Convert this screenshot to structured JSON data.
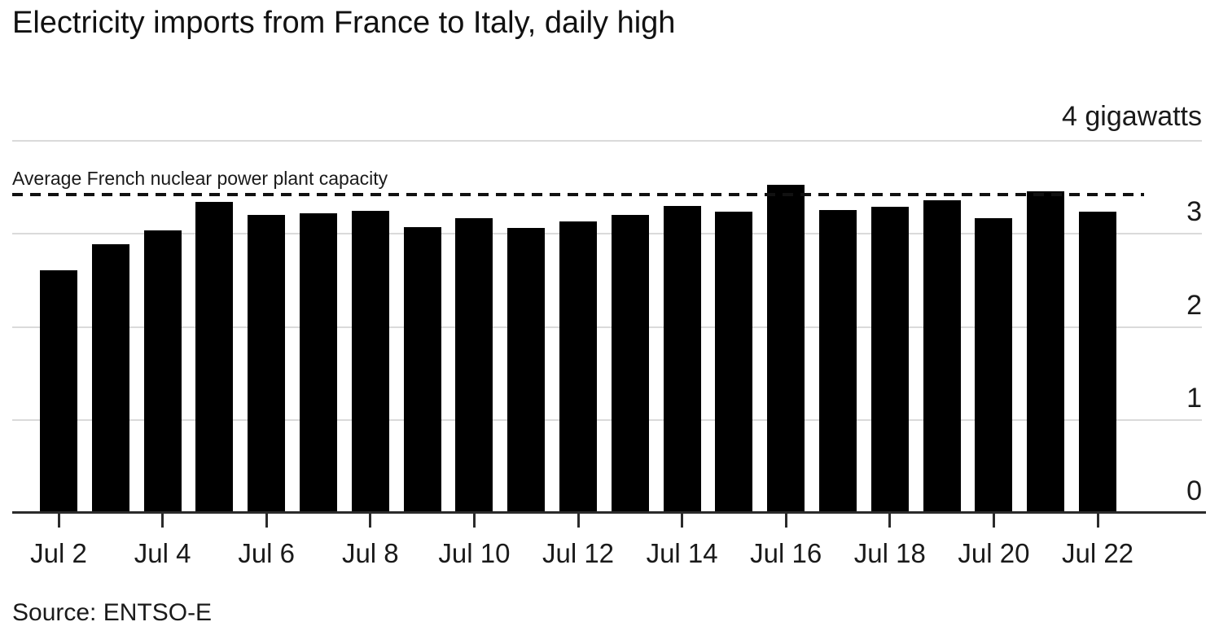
{
  "colors": {
    "background": "#ffffff",
    "bar": "#000000",
    "grid": "#dadada",
    "axis": "#2b2b2b",
    "text": "#1a1a1a",
    "reference_line": "#111111"
  },
  "chart_data": {
    "type": "bar",
    "title": "Electricity imports from France to Italy, daily high",
    "source": "Source: ENTSO-E",
    "unit": "gigawatts",
    "y_top_label": "4 gigawatts",
    "categories": [
      "Jul 2",
      "Jul 3",
      "Jul 4",
      "Jul 5",
      "Jul 6",
      "Jul 7",
      "Jul 8",
      "Jul 9",
      "Jul 10",
      "Jul 11",
      "Jul 12",
      "Jul 13",
      "Jul 14",
      "Jul 15",
      "Jul 16",
      "Jul 17",
      "Jul 18",
      "Jul 19",
      "Jul 20",
      "Jul 21",
      "Jul 22"
    ],
    "values": [
      2.61,
      2.89,
      3.04,
      3.34,
      3.2,
      3.22,
      3.25,
      3.07,
      3.17,
      3.06,
      3.13,
      3.2,
      3.3,
      3.24,
      3.53,
      3.26,
      3.29,
      3.36,
      3.17,
      3.46,
      3.24
    ],
    "ylim": [
      0,
      4
    ],
    "yticks_labeled": [
      "0",
      "1",
      "2",
      "3"
    ],
    "gridline_values": [
      1,
      2,
      3,
      4
    ],
    "x_tick_labels": [
      "Jul 2",
      "Jul 4",
      "Jul 6",
      "Jul 8",
      "Jul 10",
      "Jul 12",
      "Jul 14",
      "Jul 16",
      "Jul 18",
      "Jul 20",
      "Jul 22"
    ],
    "x_labeled_every": 2,
    "grid": true,
    "legend": false,
    "reference_line": {
      "value": 3.42,
      "label": "Average French nuclear power plant capacity",
      "style": "dashed"
    }
  }
}
